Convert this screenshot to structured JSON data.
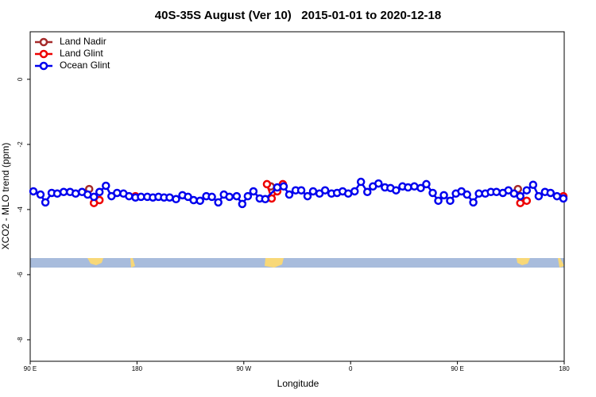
{
  "chart_data": {
    "type": "line",
    "title": "40S-35S August (Ver 10)   2015-01-01 to 2020-12-18",
    "x_label": "Longitude",
    "y_label": "XCO2 - MLO trend (ppm)",
    "xlim": [
      90,
      540
    ],
    "ylim": [
      -8.66,
      1.46
    ],
    "xticks": [
      {
        "value": 90,
        "label": "90 E"
      },
      180,
      {
        "value": 270,
        "label": "90 W"
      },
      {
        "value": 360,
        "label": "0"
      },
      {
        "value": 450,
        "label": "90 E"
      },
      {
        "value": 540,
        "label": "180"
      }
    ],
    "yticks": [
      0,
      -2,
      -4,
      -6,
      -8
    ],
    "legend": "top-left",
    "series": [
      {
        "name": "Land Nadir",
        "color": "#a52a2a",
        "x": [
          139.7,
          null,
          292.8,
          null,
          501.0
        ],
        "values": [
          -3.37,
          null,
          -3.29,
          null,
          -3.37
        ]
      },
      {
        "name": "Land Glint",
        "color": "#ee0000",
        "x": [
          143.7,
          148.4,
          null,
          178.7,
          null,
          289.5,
          293.5,
          298.2,
          302.9,
          null,
          503.0,
          508.4,
          null,
          539.3
        ],
        "values": [
          -3.8,
          -3.71,
          null,
          -3.59,
          null,
          -3.22,
          -3.66,
          -3.44,
          -3.22,
          null,
          -3.8,
          -3.73,
          null,
          -3.59
        ]
      },
      {
        "name": "Ocean Glint",
        "color": "#0000ee",
        "x": [
          92.7,
          98.7,
          102.8,
          108.1,
          112.8,
          118.2,
          123.6,
          128.3,
          133.7,
          138.4,
          143.7,
          148.4,
          153.8,
          158.5,
          163.2,
          168.6,
          173.3,
          178.7,
          183.4,
          188.7,
          193.4,
          198.1,
          202.8,
          207.5,
          212.9,
          218.3,
          223.0,
          227.7,
          233.1,
          238.4,
          243.1,
          248.5,
          253.2,
          257.9,
          264.0,
          268.7,
          273.4,
          278.1,
          283.4,
          288.1,
          298.2,
          303.6,
          308.3,
          313.7,
          318.4,
          323.7,
          328.4,
          333.8,
          338.5,
          343.9,
          348.6,
          353.3,
          358.0,
          363.4,
          368.7,
          374.1,
          378.8,
          383.5,
          388.9,
          393.6,
          398.3,
          403.7,
          408.4,
          413.7,
          419.1,
          423.8,
          429.2,
          433.9,
          438.6,
          443.9,
          448.7,
          453.4,
          458.1,
          463.4,
          468.1,
          473.5,
          478.2,
          482.9,
          488.3,
          493.0,
          497.7,
          503.0,
          508.4,
          513.8,
          518.5,
          523.8,
          528.5,
          533.9,
          539.3
        ],
        "values": [
          -3.44,
          -3.54,
          -3.78,
          -3.49,
          -3.51,
          -3.46,
          -3.46,
          -3.51,
          -3.46,
          -3.54,
          -3.61,
          -3.46,
          -3.27,
          -3.59,
          -3.49,
          -3.51,
          -3.59,
          -3.63,
          -3.61,
          -3.61,
          -3.63,
          -3.61,
          -3.63,
          -3.63,
          -3.68,
          -3.56,
          -3.61,
          -3.71,
          -3.73,
          -3.59,
          -3.61,
          -3.78,
          -3.54,
          -3.61,
          -3.59,
          -3.83,
          -3.59,
          -3.44,
          -3.66,
          -3.68,
          -3.32,
          -3.29,
          -3.54,
          -3.41,
          -3.41,
          -3.59,
          -3.44,
          -3.51,
          -3.41,
          -3.51,
          -3.49,
          -3.44,
          -3.51,
          -3.44,
          -3.15,
          -3.46,
          -3.29,
          -3.2,
          -3.32,
          -3.34,
          -3.41,
          -3.29,
          -3.32,
          -3.29,
          -3.34,
          -3.22,
          -3.49,
          -3.73,
          -3.56,
          -3.73,
          -3.51,
          -3.44,
          -3.54,
          -3.78,
          -3.51,
          -3.51,
          -3.46,
          -3.46,
          -3.49,
          -3.41,
          -3.51,
          -3.59,
          -3.41,
          -3.24,
          -3.59,
          -3.46,
          -3.49,
          -3.59,
          -3.66
        ]
      }
    ]
  }
}
